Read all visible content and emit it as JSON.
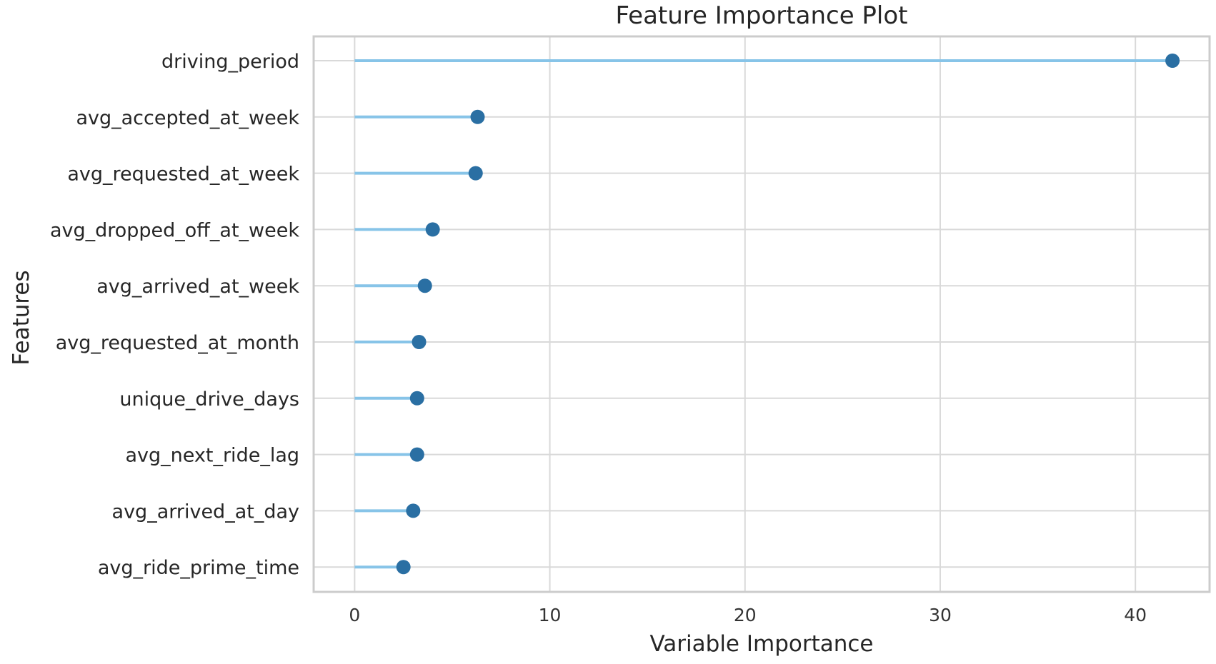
{
  "chart_data": {
    "type": "lollipop",
    "title": "Feature Importance Plot",
    "xlabel": "Variable Importance",
    "ylabel": "Features",
    "xlim": [
      -2.1,
      43.8
    ],
    "xticks": [
      0,
      10,
      20,
      30,
      40
    ],
    "xtick_labels": [
      "0",
      "10",
      "20",
      "30",
      "40"
    ],
    "grid": true,
    "categories": [
      "driving_period",
      "avg_accepted_at_week",
      "avg_requested_at_week",
      "avg_dropped_off_at_week",
      "avg_arrived_at_week",
      "avg_requested_at_month",
      "unique_drive_days",
      "avg_next_ride_lag",
      "avg_arrived_at_day",
      "avg_ride_prime_time"
    ],
    "values": [
      41.9,
      6.3,
      6.2,
      4.0,
      3.6,
      3.3,
      3.2,
      3.2,
      3.0,
      2.5
    ],
    "colors": {
      "stem": "#87c4e8",
      "marker": "#2a6fa3",
      "grid": "#d9d9d9",
      "frame": "#cccccc"
    }
  }
}
